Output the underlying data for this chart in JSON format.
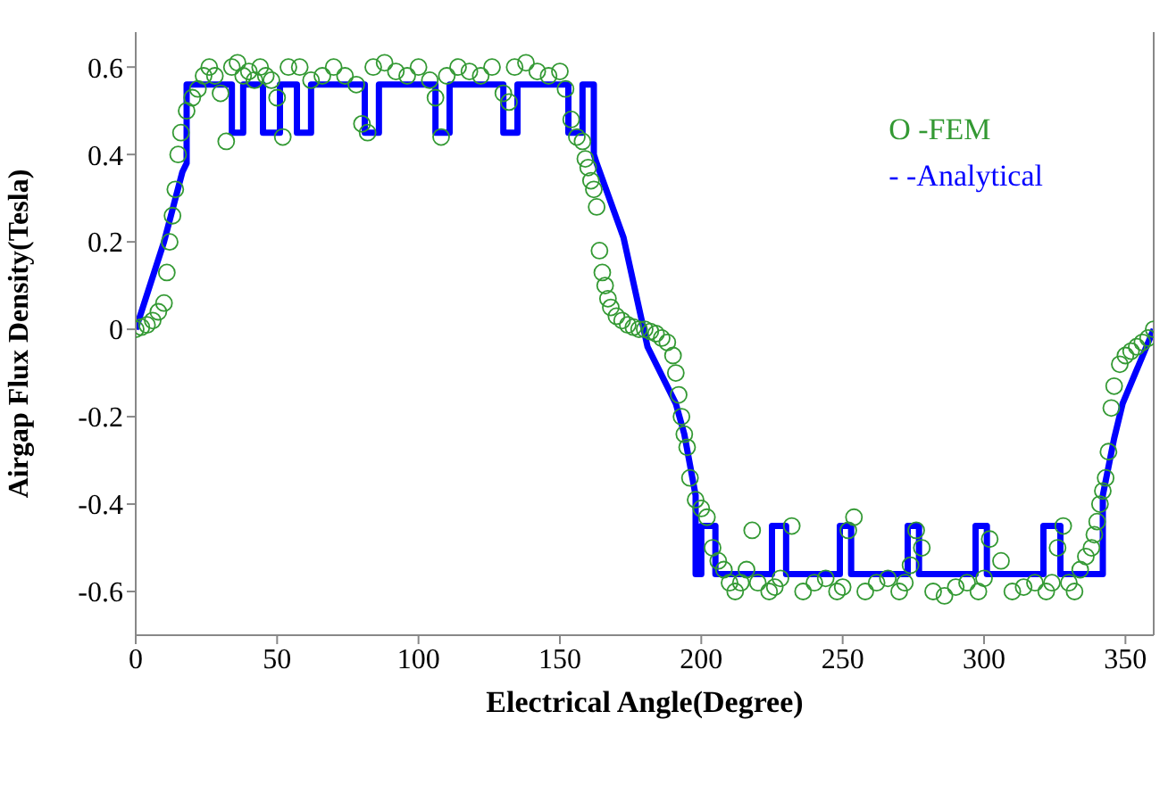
{
  "chart_data": {
    "type": "scatter",
    "xlabel": "Electrical Angle(Degree)",
    "ylabel": "Airgap Flux Density(Tesla)",
    "xlim": [
      0,
      360
    ],
    "xticks": [
      0,
      50,
      100,
      150,
      200,
      250,
      300,
      350
    ],
    "ylim": [
      -0.7,
      0.68
    ],
    "yticks": [
      -0.6,
      -0.4,
      -0.2,
      0,
      0.2,
      0.4,
      0.6
    ],
    "grid": false,
    "legend": "top right",
    "series": [
      {
        "name": "O -FEM",
        "marker": "circle",
        "color": "#339933",
        "x": [
          0,
          2,
          4,
          6,
          8,
          10,
          11,
          12,
          13,
          14,
          15,
          16,
          18,
          20,
          22,
          24,
          26,
          28,
          30,
          32,
          34,
          36,
          38,
          40,
          42,
          44,
          46,
          48,
          50,
          52,
          54,
          58,
          62,
          66,
          70,
          74,
          78,
          80,
          82,
          84,
          88,
          92,
          96,
          100,
          104,
          106,
          108,
          110,
          114,
          118,
          122,
          126,
          130,
          132,
          134,
          138,
          142,
          146,
          150,
          152,
          154,
          156,
          158,
          159,
          160,
          161,
          162,
          163,
          164,
          165,
          166,
          167,
          168,
          170,
          172,
          174,
          176,
          178,
          180,
          182,
          184,
          186,
          188,
          190,
          191,
          192,
          193,
          194,
          195,
          196,
          198,
          200,
          202,
          204,
          206,
          208,
          210,
          212,
          214,
          216,
          218,
          220,
          224,
          226,
          228,
          232,
          236,
          240,
          244,
          248,
          250,
          252,
          254,
          258,
          262,
          266,
          270,
          272,
          274,
          276,
          278,
          282,
          286,
          290,
          294,
          298,
          300,
          302,
          306,
          310,
          314,
          318,
          322,
          324,
          326,
          328,
          330,
          332,
          334,
          336,
          338,
          339,
          340,
          341,
          342,
          343,
          344,
          345,
          346,
          348,
          350,
          352,
          354,
          356,
          358,
          360
        ],
        "values": [
          0,
          0.005,
          0.01,
          0.02,
          0.04,
          0.06,
          0.13,
          0.2,
          0.26,
          0.32,
          0.4,
          0.45,
          0.5,
          0.53,
          0.55,
          0.58,
          0.6,
          0.58,
          0.54,
          0.43,
          0.6,
          0.61,
          0.58,
          0.59,
          0.57,
          0.6,
          0.58,
          0.57,
          0.53,
          0.44,
          0.6,
          0.6,
          0.57,
          0.58,
          0.6,
          0.58,
          0.56,
          0.47,
          0.45,
          0.6,
          0.61,
          0.59,
          0.58,
          0.6,
          0.57,
          0.53,
          0.44,
          0.58,
          0.6,
          0.59,
          0.58,
          0.6,
          0.54,
          0.52,
          0.6,
          0.61,
          0.59,
          0.58,
          0.59,
          0.55,
          0.48,
          0.44,
          0.43,
          0.39,
          0.37,
          0.34,
          0.32,
          0.28,
          0.18,
          0.13,
          0.1,
          0.07,
          0.05,
          0.03,
          0.02,
          0.01,
          0.005,
          0,
          0,
          -0.005,
          -0.01,
          -0.02,
          -0.03,
          -0.06,
          -0.1,
          -0.15,
          -0.2,
          -0.24,
          -0.27,
          -0.34,
          -0.39,
          -0.41,
          -0.43,
          -0.5,
          -0.53,
          -0.55,
          -0.58,
          -0.6,
          -0.58,
          -0.55,
          -0.46,
          -0.58,
          -0.6,
          -0.59,
          -0.57,
          -0.45,
          -0.6,
          -0.58,
          -0.57,
          -0.6,
          -0.59,
          -0.46,
          -0.43,
          -0.6,
          -0.58,
          -0.57,
          -0.6,
          -0.58,
          -0.54,
          -0.46,
          -0.5,
          -0.6,
          -0.61,
          -0.59,
          -0.58,
          -0.6,
          -0.57,
          -0.48,
          -0.53,
          -0.6,
          -0.59,
          -0.58,
          -0.6,
          -0.58,
          -0.5,
          -0.45,
          -0.58,
          -0.6,
          -0.55,
          -0.52,
          -0.5,
          -0.47,
          -0.44,
          -0.4,
          -0.37,
          -0.34,
          -0.28,
          -0.18,
          -0.13,
          -0.08,
          -0.06,
          -0.05,
          -0.04,
          -0.03,
          -0.02,
          0
        ]
      },
      {
        "name": "- -Analytical",
        "type": "line",
        "marker": "none",
        "line_style": "solid",
        "color": "#0000ff",
        "x": [
          0,
          10,
          16.5,
          18,
          18,
          34,
          34,
          38,
          38,
          45,
          45,
          51,
          51,
          57,
          57,
          62,
          62,
          81,
          81,
          86,
          86,
          106,
          106,
          111,
          111,
          130,
          130,
          135,
          135,
          153,
          153,
          158,
          158,
          162,
          162,
          163,
          172.5,
          181,
          191,
          194,
          198,
          198,
          200,
          200,
          205,
          205,
          225,
          225,
          230,
          230,
          249,
          249,
          253,
          253,
          273,
          273,
          277,
          277,
          297,
          297,
          301,
          301,
          321,
          321,
          327,
          327,
          342,
          342,
          346,
          349,
          360
        ],
        "values": [
          0,
          0.2,
          0.36,
          0.38,
          0.56,
          0.56,
          0.45,
          0.45,
          0.56,
          0.56,
          0.45,
          0.45,
          0.56,
          0.56,
          0.45,
          0.45,
          0.56,
          0.56,
          0.45,
          0.45,
          0.56,
          0.56,
          0.45,
          0.45,
          0.56,
          0.56,
          0.45,
          0.45,
          0.56,
          0.56,
          0.45,
          0.45,
          0.56,
          0.56,
          0.4,
          0.38,
          0.21,
          -0.04,
          -0.17,
          -0.24,
          -0.38,
          -0.56,
          -0.56,
          -0.45,
          -0.45,
          -0.56,
          -0.56,
          -0.45,
          -0.45,
          -0.56,
          -0.56,
          -0.45,
          -0.45,
          -0.56,
          -0.56,
          -0.45,
          -0.45,
          -0.56,
          -0.56,
          -0.45,
          -0.45,
          -0.56,
          -0.56,
          -0.45,
          -0.45,
          -0.56,
          -0.56,
          -0.38,
          -0.25,
          -0.17,
          0
        ]
      }
    ]
  }
}
